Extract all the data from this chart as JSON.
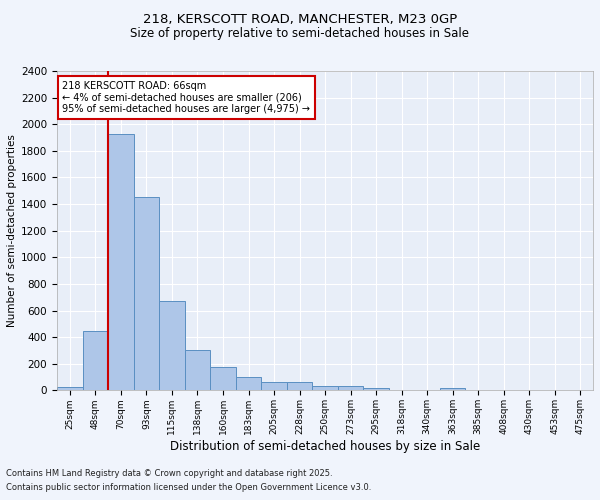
{
  "title1": "218, KERSCOTT ROAD, MANCHESTER, M23 0GP",
  "title2": "Size of property relative to semi-detached houses in Sale",
  "xlabel": "Distribution of semi-detached houses by size in Sale",
  "ylabel": "Number of semi-detached properties",
  "bins": [
    "25sqm",
    "48sqm",
    "70sqm",
    "93sqm",
    "115sqm",
    "138sqm",
    "160sqm",
    "183sqm",
    "205sqm",
    "228sqm",
    "250sqm",
    "273sqm",
    "295sqm",
    "318sqm",
    "340sqm",
    "363sqm",
    "385sqm",
    "408sqm",
    "430sqm",
    "453sqm",
    "475sqm"
  ],
  "values": [
    25,
    450,
    1930,
    1455,
    670,
    305,
    175,
    100,
    65,
    60,
    35,
    35,
    20,
    0,
    0,
    20,
    0,
    0,
    0,
    0,
    0
  ],
  "bar_color": "#aec6e8",
  "bar_edge_color": "#5a8fc2",
  "bg_color": "#e8eef8",
  "grid_color": "#ffffff",
  "annotation_line0": "218 KERSCOTT ROAD: 66sqm",
  "annotation_line1": "← 4% of semi-detached houses are smaller (206)",
  "annotation_line2": "95% of semi-detached houses are larger (4,975) →",
  "annotation_box_color": "#ffffff",
  "annotation_box_edge": "#cc0000",
  "vline_color": "#cc0000",
  "ylim": [
    0,
    2400
  ],
  "footer1": "Contains HM Land Registry data © Crown copyright and database right 2025.",
  "footer2": "Contains public sector information licensed under the Open Government Licence v3.0."
}
